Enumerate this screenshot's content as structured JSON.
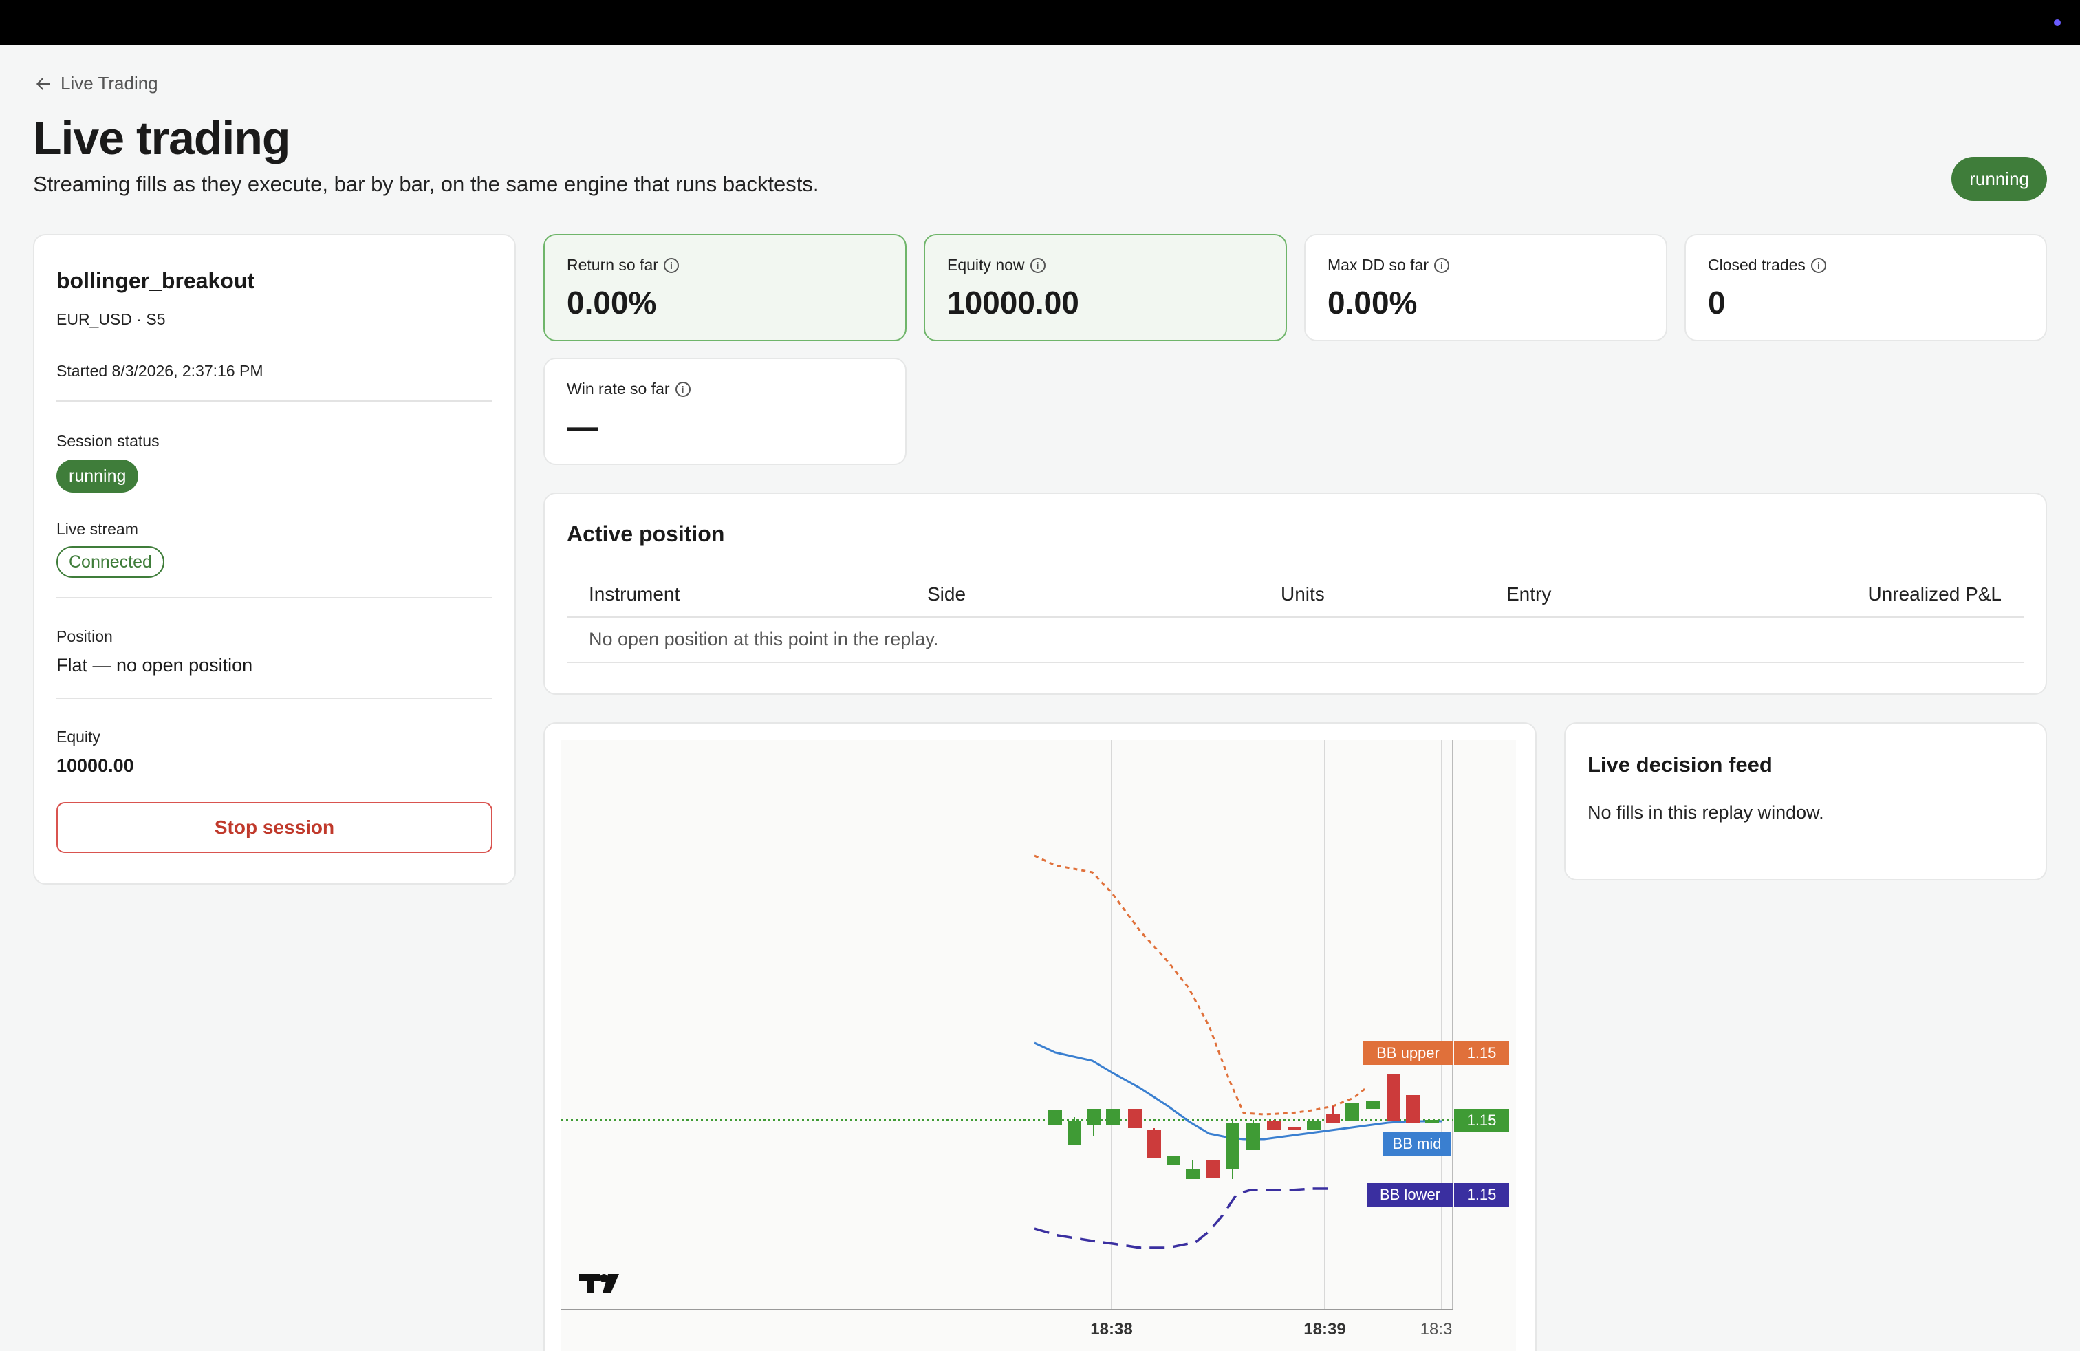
{
  "header": {
    "back_label": "Live Trading",
    "title": "Live trading",
    "subtitle": "Streaming fills as they execute, bar by bar, on the same engine that runs backtests.",
    "status_pill": "running"
  },
  "session": {
    "strategy": "bollinger_breakout",
    "instrument": "EUR_USD · S5",
    "started": "Started 8/3/2026, 2:37:16 PM",
    "session_status_label": "Session status",
    "session_status": "running",
    "live_stream_label": "Live stream",
    "live_stream": "Connected",
    "position_label": "Position",
    "position": "Flat — no open position",
    "equity_label": "Equity",
    "equity": "10000.00",
    "stop_button": "Stop session"
  },
  "metrics": [
    {
      "label": "Return so far",
      "value": "0.00%"
    },
    {
      "label": "Equity now",
      "value": "10000.00"
    },
    {
      "label": "Max DD so far",
      "value": "0.00%"
    },
    {
      "label": "Closed trades",
      "value": "0"
    },
    {
      "label": "Win rate so far",
      "value": "—"
    }
  ],
  "active_position": {
    "title": "Active position",
    "columns": [
      "Instrument",
      "Side",
      "Units",
      "Entry",
      "Unrealized P&L"
    ],
    "empty_text": "No open position at this point in the replay."
  },
  "feed": {
    "title": "Live decision feed",
    "empty_text": "No fills in this replay window."
  },
  "chart": {
    "time_labels": [
      "18:38",
      "18:39",
      "18:3"
    ],
    "bands": [
      {
        "name": "BB upper",
        "value": "1.15",
        "color": "#e0703a"
      },
      {
        "name": "BB mid",
        "value": "1.15",
        "color": "#3a7fd0"
      },
      {
        "name": "BB lower",
        "value": "1.15",
        "color": "#3a2fa0"
      }
    ],
    "last_price": "1.15",
    "up_color": "#3f9b35",
    "down_color": "#cc3b3b"
  }
}
